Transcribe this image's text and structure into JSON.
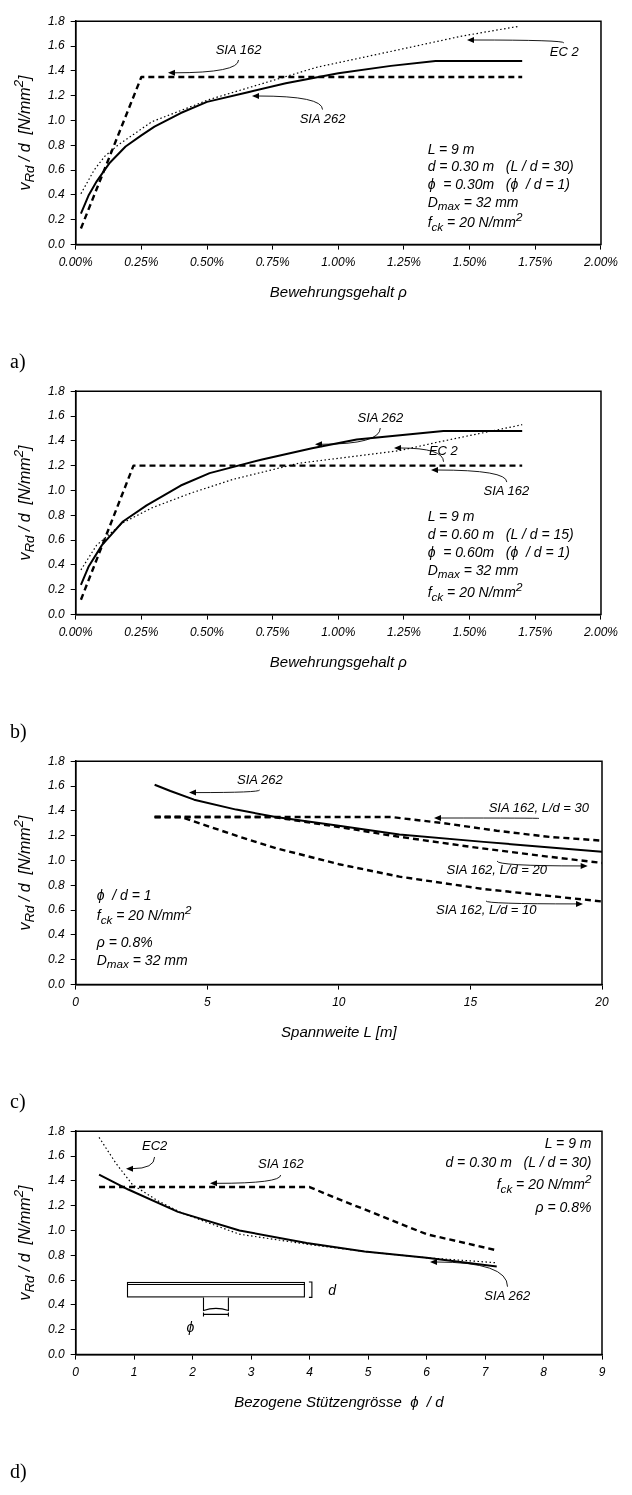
{
  "chart_data": [
    {
      "type": "line",
      "xlabel": "Bewehrungsgehalt ρ",
      "ylabel": "v$_{Rd}$ / d  [N/mm$^{2}$]",
      "marker": "none",
      "xlim": [
        0,
        2
      ],
      "xticks": [
        {
          "value": 0,
          "label": "0.00%"
        },
        {
          "value": 0.25,
          "label": "0.25%"
        },
        {
          "value": 0.5,
          "label": "0.50%"
        },
        {
          "value": 0.75,
          "label": "0.75%"
        },
        {
          "value": 1,
          "label": "1.00%"
        },
        {
          "value": 1.25,
          "label": "1.25%"
        },
        {
          "value": 1.5,
          "label": "1.50%"
        },
        {
          "value": 1.75,
          "label": "1.75%"
        },
        {
          "value": 2,
          "label": "2.00%"
        }
      ],
      "ylim": [
        0,
        1.8
      ],
      "yticks": [
        {
          "value": 0,
          "label": "0.0"
        },
        {
          "value": 0.2,
          "label": "0.2"
        },
        {
          "value": 0.4,
          "label": "0.4"
        },
        {
          "value": 0.6,
          "label": "0.6"
        },
        {
          "value": 0.8,
          "label": "0.8"
        },
        {
          "value": 1,
          "label": "1.0"
        },
        {
          "value": 1.2,
          "label": "1.2"
        },
        {
          "value": 1.4,
          "label": "1.4"
        },
        {
          "value": 1.6,
          "label": "1.6"
        },
        {
          "value": 1.8,
          "label": "1.8"
        }
      ],
      "series": [
        {
          "name": "SIA 262",
          "color": "#000000",
          "line_style": "solid",
          "x": [
            0.02,
            0.05,
            0.08,
            0.13,
            0.19,
            0.25,
            0.3,
            0.4,
            0.5,
            0.66,
            0.8,
            1,
            1.2,
            1.37,
            1.7
          ],
          "values": [
            0.25,
            0.4,
            0.51,
            0.66,
            0.79,
            0.88,
            0.95,
            1.06,
            1.15,
            1.23,
            1.3,
            1.38,
            1.44,
            1.48,
            1.48
          ]
        },
        {
          "name": "SIA 162",
          "color": "#000000",
          "line_style": "dashed",
          "x": [
            0.02,
            0.25,
            1.7
          ],
          "values": [
            0.13,
            1.35,
            1.35
          ]
        },
        {
          "name": "EC 2",
          "color": "#000000",
          "line_style": "dotted",
          "x": [
            0.02,
            0.07,
            0.11,
            0.16,
            0.29,
            0.51,
            0.92,
            1.23,
            1.47,
            1.69
          ],
          "values": [
            0.41,
            0.6,
            0.71,
            0.8,
            0.99,
            1.17,
            1.43,
            1.57,
            1.68,
            1.76
          ]
        }
      ],
      "annotations": [
        "L = 9 m",
        "d = 0.30 m   (L / d = 30)",
        "ϕ  = 0.30m   (ϕ  / d = 1)",
        "D$_{max}$ = 32 mm",
        "f$_{ck}$ = 20 N/mm$^{2}$",
        "a)"
      ]
    },
    {
      "type": "line",
      "xlabel": "Bewehrungsgehalt ρ",
      "ylabel": "v$_{Rd}$ / d  [N/mm$^{2}$]",
      "marker": "none",
      "xlim": [
        0,
        2
      ],
      "xticks": [
        {
          "value": 0,
          "label": "0.00%"
        },
        {
          "value": 0.25,
          "label": "0.25%"
        },
        {
          "value": 0.5,
          "label": "0.50%"
        },
        {
          "value": 0.75,
          "label": "0.75%"
        },
        {
          "value": 1,
          "label": "1.00%"
        },
        {
          "value": 1.25,
          "label": "1.25%"
        },
        {
          "value": 1.5,
          "label": "1.50%"
        },
        {
          "value": 1.75,
          "label": "1.75%"
        },
        {
          "value": 2,
          "label": "2.00%"
        }
      ],
      "ylim": [
        0,
        1.8
      ],
      "yticks": [
        {
          "value": 0,
          "label": "0.0"
        },
        {
          "value": 0.2,
          "label": "0.2"
        },
        {
          "value": 0.4,
          "label": "0.4"
        },
        {
          "value": 0.6,
          "label": "0.6"
        },
        {
          "value": 0.8,
          "label": "0.8"
        },
        {
          "value": 1,
          "label": "1.0"
        },
        {
          "value": 1.2,
          "label": "1.2"
        },
        {
          "value": 1.4,
          "label": "1.4"
        },
        {
          "value": 1.6,
          "label": "1.6"
        },
        {
          "value": 1.8,
          "label": "1.8"
        }
      ],
      "series": [
        {
          "name": "SIA 262",
          "color": "#000000",
          "line_style": "solid",
          "x": [
            0.02,
            0.05,
            0.1,
            0.18,
            0.27,
            0.4,
            0.51,
            0.71,
            0.9,
            1.07,
            1.4,
            1.7
          ],
          "values": [
            0.24,
            0.39,
            0.56,
            0.75,
            0.88,
            1.04,
            1.14,
            1.25,
            1.34,
            1.41,
            1.48,
            1.48
          ]
        },
        {
          "name": "SIA 162",
          "color": "#000000",
          "line_style": "dashed",
          "x": [
            0.02,
            0.22,
            1.7
          ],
          "values": [
            0.12,
            1.2,
            1.2
          ]
        },
        {
          "name": "EC 2",
          "color": "#000000",
          "line_style": "dotted",
          "x": [
            0.02,
            0.08,
            0.18,
            0.29,
            0.44,
            0.6,
            0.85,
            1.23,
            1.38,
            1.7
          ],
          "values": [
            0.36,
            0.56,
            0.74,
            0.86,
            0.98,
            1.09,
            1.22,
            1.32,
            1.39,
            1.53
          ]
        }
      ],
      "annotations": [
        "L = 9 m",
        "d = 0.60 m   (L / d = 15)",
        "ϕ  = 0.60m   (ϕ  / d = 1)",
        "D$_{max}$ = 32 mm",
        "f$_{ck}$ = 20 N/mm$^{2}$",
        "b)"
      ]
    },
    {
      "type": "line",
      "xlabel": "Spannweite L [m]",
      "ylabel": "v$_{Rd}$ / d  [N/mm$^{2}$]",
      "marker": "none",
      "xlim": [
        0,
        20
      ],
      "xticks": [
        0,
        5,
        10,
        15,
        20
      ],
      "ylim": [
        0,
        1.8
      ],
      "yticks": [
        {
          "value": 0,
          "label": "0.0"
        },
        {
          "value": 0.2,
          "label": "0.2"
        },
        {
          "value": 0.4,
          "label": "0.4"
        },
        {
          "value": 0.6,
          "label": "0.6"
        },
        {
          "value": 0.8,
          "label": "0.8"
        },
        {
          "value": 1,
          "label": "1.0"
        },
        {
          "value": 1.2,
          "label": "1.2"
        },
        {
          "value": 1.4,
          "label": "1.4"
        },
        {
          "value": 1.6,
          "label": "1.6"
        },
        {
          "value": 1.8,
          "label": "1.8"
        }
      ],
      "series": [
        {
          "name": "SIA 262",
          "color": "#000000",
          "line_style": "solid",
          "x": [
            3,
            3.6,
            4.5,
            6.1,
            7.6,
            10,
            12.3,
            15.5,
            20
          ],
          "values": [
            1.61,
            1.56,
            1.49,
            1.41,
            1.35,
            1.28,
            1.21,
            1.15,
            1.07
          ]
        },
        {
          "name": "SIA 162, L/d = 30",
          "color": "#000000",
          "line_style": "dashed",
          "x": [
            3,
            12,
            14,
            16,
            18,
            20
          ],
          "values": [
            1.35,
            1.35,
            1.3,
            1.24,
            1.19,
            1.16
          ]
        },
        {
          "name": "SIA 162, L/d = 20",
          "color": "#000000",
          "line_style": "dashed",
          "x": [
            3,
            7.5,
            10,
            12,
            15,
            18,
            20
          ],
          "values": [
            1.35,
            1.35,
            1.27,
            1.2,
            1.11,
            1.03,
            0.98
          ]
        },
        {
          "name": "SIA 162, L/d = 10",
          "color": "#000000",
          "line_style": "dashed",
          "x": [
            3,
            4,
            6.1,
            7.6,
            10,
            12.3,
            15.5,
            20
          ],
          "values": [
            1.35,
            1.35,
            1.2,
            1.1,
            0.97,
            0.87,
            0.77,
            0.67
          ]
        }
      ],
      "annotations": [
        "ϕ  / d = 1",
        "f$_{ck}$ = 20 N/mm$^{2}$",
        "ρ = 0.8%",
        "D$_{max}$ = 32 mm",
        "c)"
      ]
    },
    {
      "type": "line",
      "xlabel": "Bezogene Stützengrösse  ϕ  / d",
      "ylabel": "v$_{Rd}$ / d  [N/mm$^{2}$]",
      "marker": "none",
      "xlim": [
        0,
        9
      ],
      "xticks": [
        0,
        1,
        2,
        3,
        4,
        5,
        6,
        7,
        8,
        9
      ],
      "ylim": [
        0,
        1.8
      ],
      "yticks": [
        {
          "value": 0,
          "label": "0.0"
        },
        {
          "value": 0.2,
          "label": "0.2"
        },
        {
          "value": 0.4,
          "label": "0.4"
        },
        {
          "value": 0.6,
          "label": "0.6"
        },
        {
          "value": 0.8,
          "label": "0.8"
        },
        {
          "value": 1,
          "label": "1.0"
        },
        {
          "value": 1.2,
          "label": "1.2"
        },
        {
          "value": 1.4,
          "label": "1.4"
        },
        {
          "value": 1.6,
          "label": "1.6"
        },
        {
          "value": 1.8,
          "label": "1.8"
        }
      ],
      "series": [
        {
          "name": "SIA 262",
          "color": "#000000",
          "line_style": "solid",
          "x": [
            0.4,
            0.9,
            1.75,
            2.8,
            3.95,
            4.94,
            6,
            7.2
          ],
          "values": [
            1.45,
            1.33,
            1.15,
            1,
            0.9,
            0.83,
            0.78,
            0.71
          ]
        },
        {
          "name": "SIA 162",
          "color": "#000000",
          "line_style": "dashed",
          "x": [
            0.4,
            4,
            4.4,
            4.94,
            6,
            7.2
          ],
          "values": [
            1.35,
            1.35,
            1.27,
            1.17,
            0.97,
            0.84
          ]
        },
        {
          "name": "EC2",
          "color": "#000000",
          "line_style": "dotted",
          "x": [
            0.4,
            0.69,
            0.97,
            1.4,
            1.82,
            2.8,
            3.95,
            4.94,
            6,
            7.2
          ],
          "values": [
            1.75,
            1.54,
            1.37,
            1.24,
            1.14,
            0.97,
            0.89,
            0.83,
            0.78,
            0.74
          ]
        }
      ],
      "annotations": [
        "L = 9 m",
        "d = 0.30 m   (L / d = 30)",
        "f$_{ck}$ = 20 N/mm$^{2}$",
        "ρ = 0.8%",
        "d",
        "ϕ",
        "d)"
      ]
    }
  ]
}
